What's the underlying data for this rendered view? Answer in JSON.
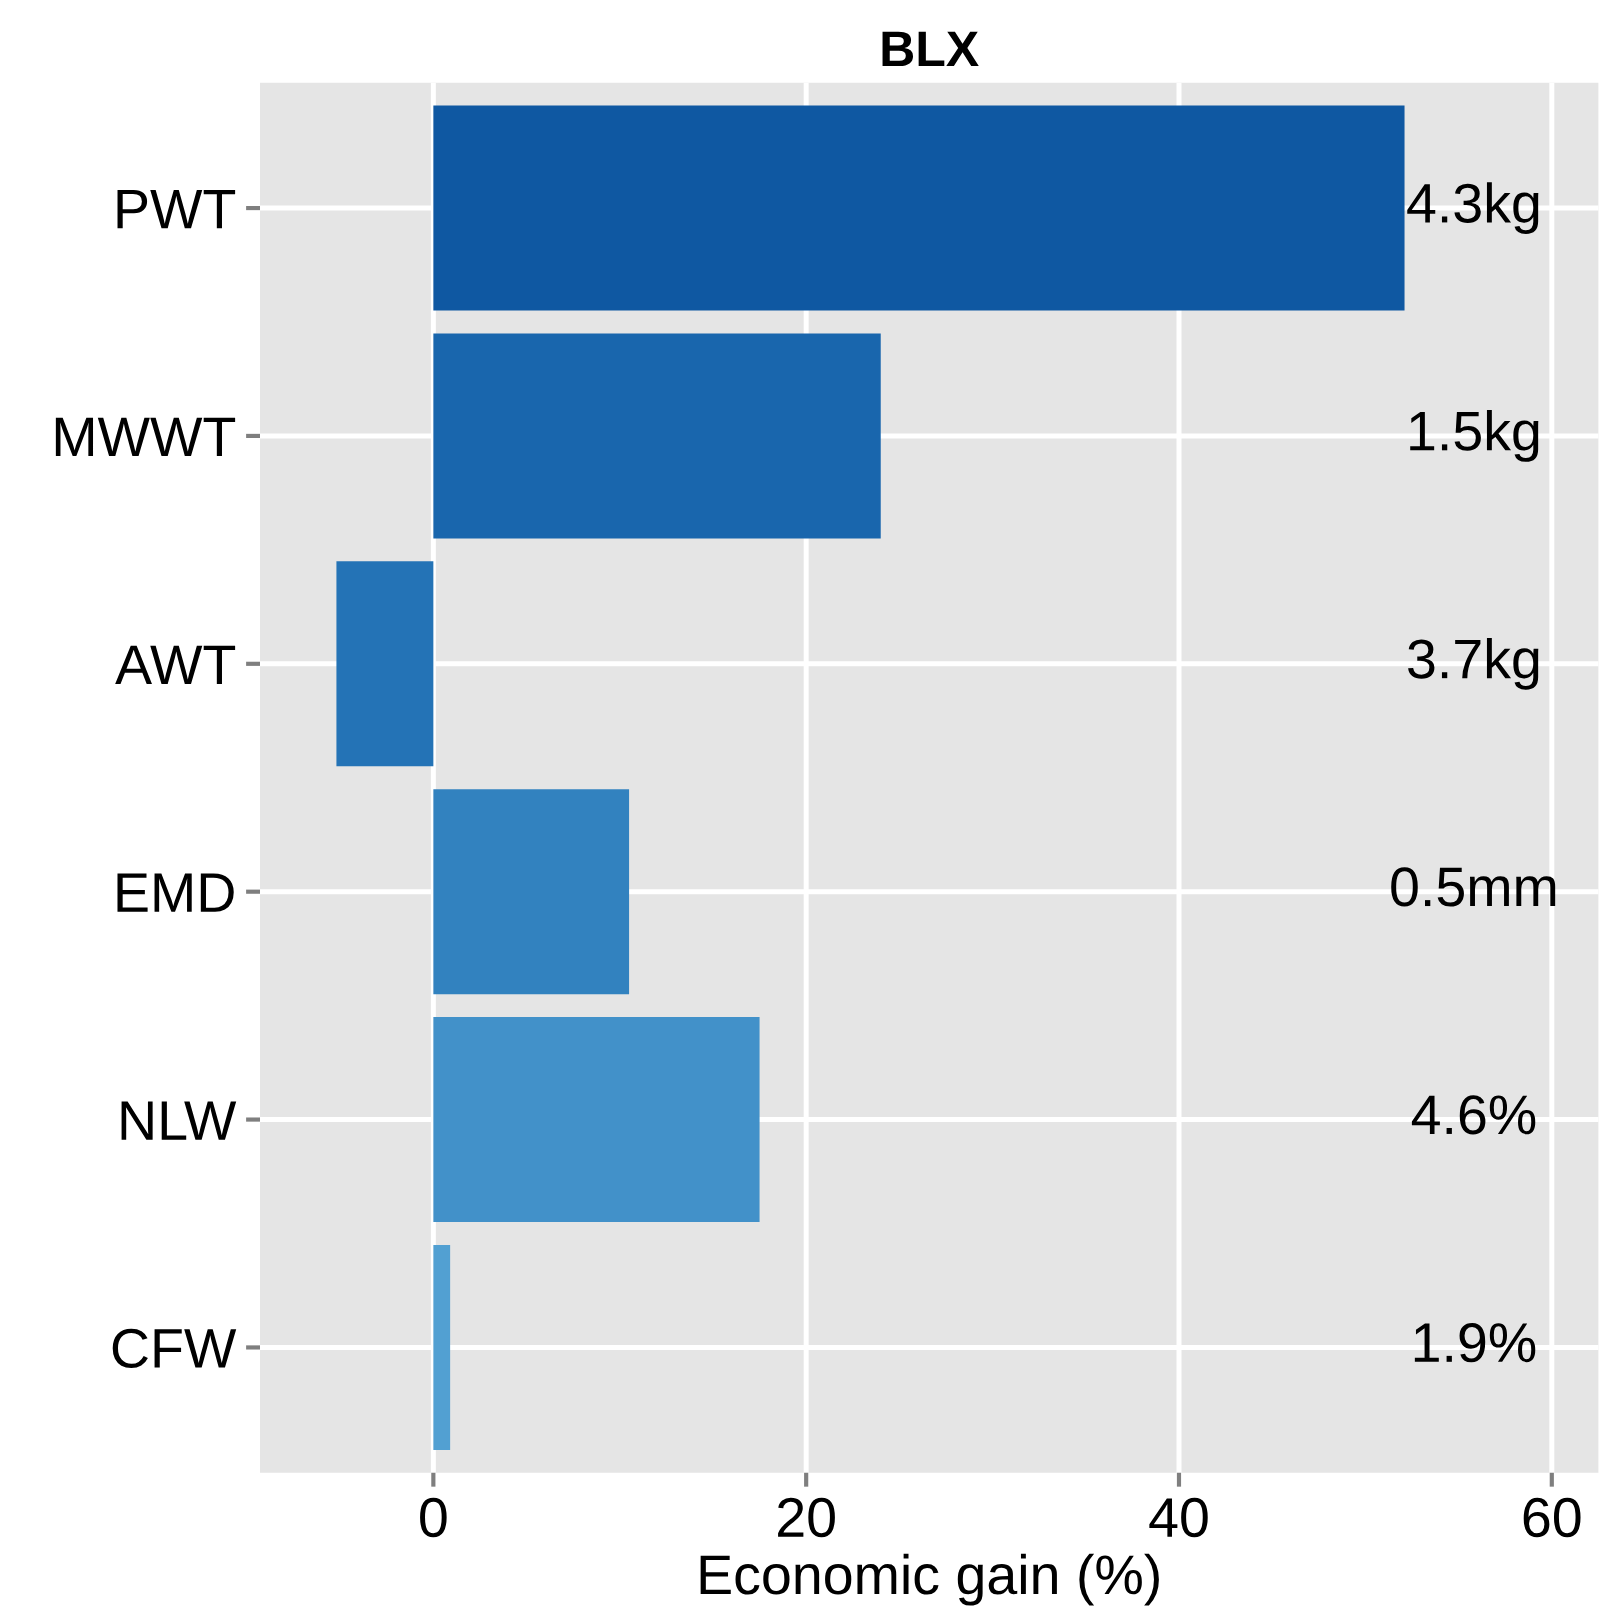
{
  "chart_data": {
    "type": "bar",
    "orientation": "horizontal",
    "title": "BLX",
    "xlabel": "Economic gain (%)",
    "categories": [
      "PWT",
      "MWWT",
      "AWT",
      "EMD",
      "NLW",
      "CFW"
    ],
    "values": [
      52.1,
      24.0,
      -5.2,
      10.5,
      17.5,
      0.9
    ],
    "colors": [
      "#0f58a2",
      "#1966ad",
      "#2473b6",
      "#3282bf",
      "#4291c9",
      "#52a0d2"
    ],
    "annotations": [
      "4.3kg",
      "1.5kg",
      "3.7kg",
      "0.5mm",
      "4.6%",
      "1.9%"
    ],
    "xlim": [
      -9.3,
      62.5
    ],
    "xticks": [
      0,
      20,
      40,
      60
    ],
    "grid": true
  }
}
